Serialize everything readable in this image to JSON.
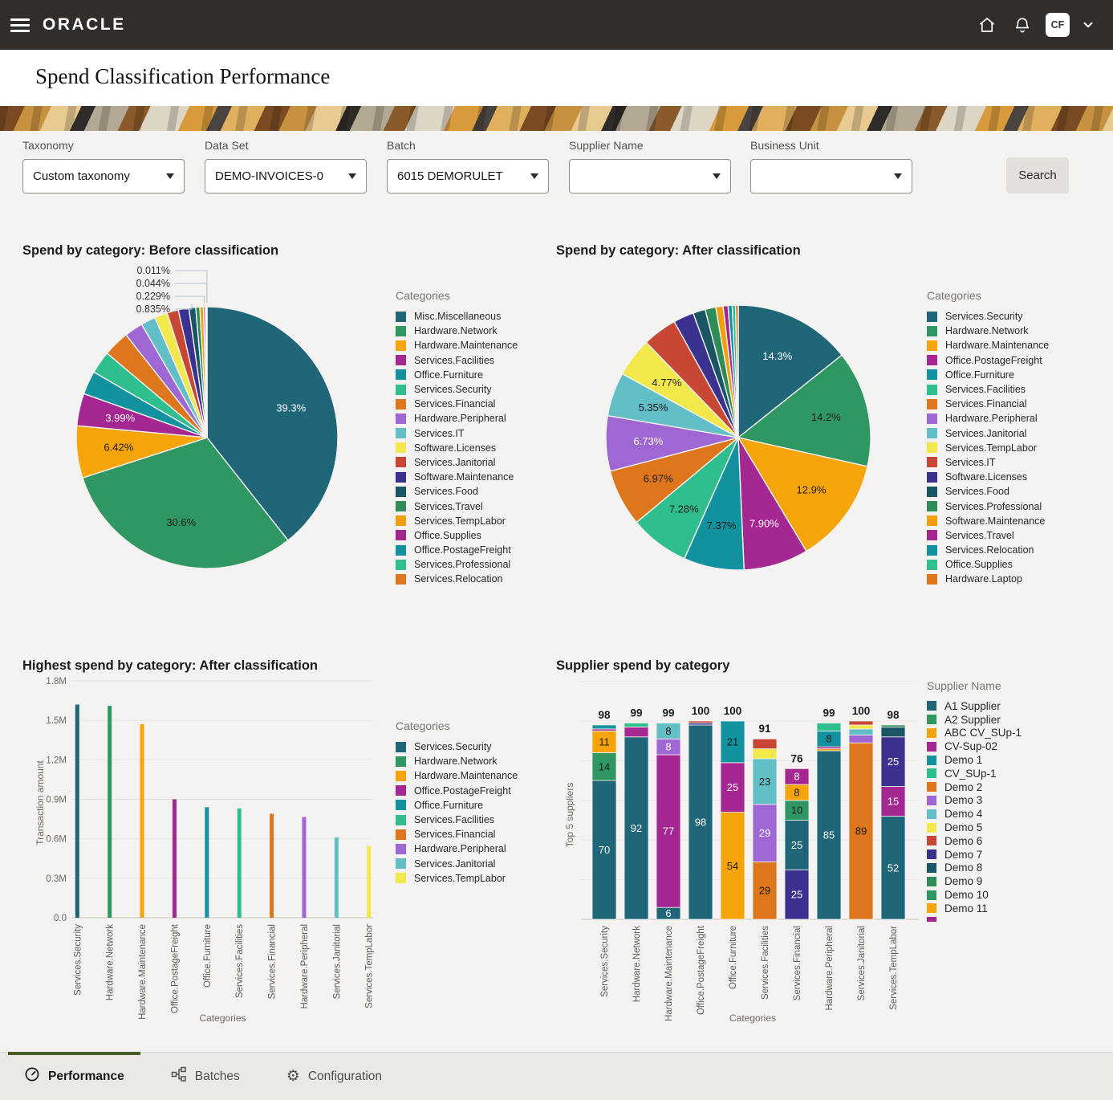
{
  "header": {
    "brand": "ORACLE",
    "avatar": "CF"
  },
  "page_title": "Spend Classification Performance",
  "filters": {
    "taxonomy": {
      "label": "Taxonomy",
      "value": "Custom taxonomy"
    },
    "data_set": {
      "label": "Data Set",
      "value": "DEMO-INVOICES-0"
    },
    "batch": {
      "label": "Batch",
      "value": "6015 DEMORULET"
    },
    "supplier_name": {
      "label": "Supplier Name",
      "value": ""
    },
    "business_unit": {
      "label": "Business Unit",
      "value": ""
    },
    "search_label": "Search"
  },
  "palette": {
    "darkteal": "#1F6678",
    "green": "#2F9862",
    "amber": "#F5A40A",
    "magenta": "#A52791",
    "teal": "#12919E",
    "springgreen": "#2FBE8D",
    "orange": "#DD761C",
    "purple": "#9F67D4",
    "lightteal": "#62BEC7",
    "yellow": "#F2E84B",
    "red": "#C74634",
    "indigo": "#3B3290",
    "darkteal2": "#1A5565",
    "green2": "#2F8C57",
    "amber2": "#EFA00B",
    "magenta2": "#A3258E"
  },
  "chart_data": [
    {
      "type": "pie",
      "title": "Spend by category: Before classification",
      "legend_title": "Categories",
      "slices": [
        {
          "label": "Misc.Miscellaneous",
          "value": 39.3,
          "color": "darkteal",
          "pct_label": "39.3%"
        },
        {
          "label": "Hardware.Network",
          "value": 30.6,
          "color": "green",
          "pct_label": "30.6%"
        },
        {
          "label": "Hardware.Maintenance",
          "value": 6.42,
          "color": "amber",
          "pct_label": "6.42%"
        },
        {
          "label": "Services.Facilities",
          "value": 3.99,
          "color": "magenta",
          "pct_label": "3.99%"
        },
        {
          "label": "Office.Furniture",
          "value": 2.9,
          "color": "teal"
        },
        {
          "label": "Services.Security",
          "value": 2.8,
          "color": "springgreen"
        },
        {
          "label": "Services.Financial",
          "value": 3.2,
          "color": "orange"
        },
        {
          "label": "Hardware.Peripheral",
          "value": 2.3,
          "color": "purple"
        },
        {
          "label": "Services.IT",
          "value": 1.8,
          "color": "lightteal"
        },
        {
          "label": "Software.Licenses",
          "value": 1.6,
          "color": "yellow"
        },
        {
          "label": "Services.Janitorial",
          "value": 1.4,
          "color": "red"
        },
        {
          "label": "Software.Maintenance",
          "value": 1.3,
          "color": "indigo"
        },
        {
          "label": "Services.Food",
          "value": 0.835,
          "color": "darkteal2",
          "callout": "0.835%"
        },
        {
          "label": "Services.Travel",
          "value": 0.5,
          "color": "green2"
        },
        {
          "label": "Services.TempLabor",
          "value": 0.45,
          "color": "amber2"
        },
        {
          "label": "Office.Supplies",
          "value": 0.229,
          "color": "magenta2",
          "callout": "0.229%"
        },
        {
          "label": "Office.PostageFreight",
          "value": 0.15,
          "color": "teal"
        },
        {
          "label": "Services.Professional",
          "value": 0.044,
          "color": "springgreen",
          "callout": "0.044%"
        },
        {
          "label": "Services.Relocation",
          "value": 0.011,
          "color": "orange",
          "callout": "0.011%"
        }
      ]
    },
    {
      "type": "pie",
      "title": "Spend by category: After classification",
      "legend_title": "Categories",
      "slices": [
        {
          "label": "Services.Security",
          "value": 14.3,
          "color": "darkteal",
          "pct_label": "14.3%"
        },
        {
          "label": "Hardware.Network",
          "value": 14.2,
          "color": "green",
          "pct_label": "14.2%"
        },
        {
          "label": "Hardware.Maintenance",
          "value": 12.9,
          "color": "amber",
          "pct_label": "12.9%"
        },
        {
          "label": "Office.PostageFreight",
          "value": 7.9,
          "color": "magenta",
          "pct_label": "7.90%"
        },
        {
          "label": "Office.Furniture",
          "value": 7.37,
          "color": "teal",
          "pct_label": "7.37%"
        },
        {
          "label": "Services.Facilities",
          "value": 7.28,
          "color": "springgreen",
          "pct_label": "7.28%"
        },
        {
          "label": "Services.Financial",
          "value": 6.97,
          "color": "orange",
          "pct_label": "6.97%"
        },
        {
          "label": "Hardware.Peripheral",
          "value": 6.73,
          "color": "purple",
          "pct_label": "6.73%"
        },
        {
          "label": "Services.Janitorial",
          "value": 5.35,
          "color": "lightteal",
          "pct_label": "5.35%"
        },
        {
          "label": "Services.TempLabor",
          "value": 4.77,
          "color": "yellow",
          "pct_label": "4.77%"
        },
        {
          "label": "Services.IT",
          "value": 4.2,
          "color": "red"
        },
        {
          "label": "Software.Licenses",
          "value": 2.5,
          "color": "indigo"
        },
        {
          "label": "Services.Food",
          "value": 1.5,
          "color": "darkteal2"
        },
        {
          "label": "Services.Professional",
          "value": 1.3,
          "color": "green2"
        },
        {
          "label": "Software.Maintenance",
          "value": 0.9,
          "color": "amber2"
        },
        {
          "label": "Services.Travel",
          "value": 0.6,
          "color": "magenta2"
        },
        {
          "label": "Services.Relocation",
          "value": 0.5,
          "color": "teal"
        },
        {
          "label": "Office.Supplies",
          "value": 0.4,
          "color": "springgreen"
        },
        {
          "label": "Hardware.Laptop",
          "value": 0.33,
          "color": "orange"
        }
      ]
    },
    {
      "type": "bar",
      "title": "Highest spend by category: After classification",
      "legend_title": "Categories",
      "ylabel": "Transaction amount",
      "xlabel": "Categories",
      "yticks": [
        "0.0",
        "0.3M",
        "0.6M",
        "0.9M",
        "1.2M",
        "1.5M",
        "1.8M"
      ],
      "ymax": 1800000,
      "categories": [
        "Services.Security",
        "Hardware.Network",
        "Hardware.Maintenance",
        "Office.PostageFreight",
        "Office.Furniture",
        "Services.Facilities",
        "Services.Financial",
        "Hardware.Peripheral",
        "Services.Janitorial",
        "Services.TempLabor"
      ],
      "values": [
        1620000,
        1610000,
        1470000,
        900000,
        840000,
        830000,
        790000,
        765000,
        610000,
        545000
      ],
      "colors": [
        "darkteal",
        "green",
        "amber",
        "magenta",
        "teal",
        "springgreen",
        "orange",
        "purple",
        "lightteal",
        "yellow"
      ]
    },
    {
      "type": "stacked_bar",
      "title": "Supplier spend by category",
      "legend_title": "Supplier Name",
      "ylabel": "Top 5 suppliers",
      "xlabel": "Categories",
      "suppliers": [
        {
          "name": "A1 Supplier",
          "color": "darkteal"
        },
        {
          "name": "A2 Supplier",
          "color": "green"
        },
        {
          "name": "ABC CV_SUp-1",
          "color": "amber"
        },
        {
          "name": "CV-Sup-02",
          "color": "magenta"
        },
        {
          "name": "Demo 1",
          "color": "teal"
        },
        {
          "name": "CV_SUp-1",
          "color": "springgreen"
        },
        {
          "name": "Demo 2",
          "color": "orange"
        },
        {
          "name": "Demo 3",
          "color": "purple"
        },
        {
          "name": "Demo 4",
          "color": "lightteal"
        },
        {
          "name": "Demo 5",
          "color": "yellow"
        },
        {
          "name": "Demo 6",
          "color": "red"
        },
        {
          "name": "Demo 7",
          "color": "indigo"
        },
        {
          "name": "Demo 8",
          "color": "darkteal2"
        },
        {
          "name": "Demo 9",
          "color": "green2"
        },
        {
          "name": "Demo 10",
          "color": "green"
        },
        {
          "name": "Demo 11",
          "color": "amber"
        },
        {
          "name": "",
          "color": "magenta2"
        }
      ],
      "categories": [
        "Services.Security",
        "Hardware.Network",
        "Hardware.Maintenance",
        "Office.PostageFreight",
        "Office.Furniture",
        "Services.Facilities",
        "Services.Financial",
        "Hardware.Peripheral",
        "Services.Janitorial",
        "Services.TempLabor"
      ],
      "bars": [
        {
          "total": 98,
          "segments": [
            {
              "supplier": "A1 Supplier",
              "value": 70
            },
            {
              "supplier": "A2 Supplier",
              "value": 14
            },
            {
              "supplier": "ABC CV_SUp-1",
              "value": 11
            },
            {
              "supplier": "CV-Sup-02",
              "value": 1
            },
            {
              "supplier": "Demo 1",
              "value": 2
            }
          ]
        },
        {
          "total": 99,
          "segments": [
            {
              "supplier": "A1 Supplier",
              "value": 92
            },
            {
              "supplier": "CV-Sup-02",
              "value": 5
            },
            {
              "supplier": "CV_SUp-1",
              "value": 2
            }
          ]
        },
        {
          "total": 99,
          "segments": [
            {
              "supplier": "A1 Supplier",
              "value": 6
            },
            {
              "supplier": "CV-Sup-02",
              "value": 77
            },
            {
              "supplier": "Demo 3",
              "value": 8
            },
            {
              "supplier": "Demo 4",
              "value": 8
            }
          ]
        },
        {
          "total": 100,
          "segments": [
            {
              "supplier": "A1 Supplier",
              "value": 98
            },
            {
              "supplier": "Demo 7",
              "value": 1
            },
            {
              "supplier": "Demo 6",
              "value": 1
            }
          ]
        },
        {
          "total": 100,
          "segments": [
            {
              "supplier": "ABC CV_SUp-1",
              "value": 54
            },
            {
              "supplier": "CV-Sup-02",
              "value": 25
            },
            {
              "supplier": "Demo 1",
              "value": 21
            }
          ]
        },
        {
          "total": 91,
          "segments": [
            {
              "supplier": "Demo 2",
              "value": 29
            },
            {
              "supplier": "Demo 3",
              "value": 29
            },
            {
              "supplier": "Demo 4",
              "value": 23
            },
            {
              "supplier": "Demo 5",
              "value": 5
            },
            {
              "supplier": "Demo 6",
              "value": 5
            }
          ]
        },
        {
          "total": 76,
          "segments": [
            {
              "supplier": "Demo 7",
              "value": 25
            },
            {
              "supplier": "A1 Supplier",
              "value": 25
            },
            {
              "supplier": "A2 Supplier",
              "value": 10
            },
            {
              "supplier": "ABC CV_SUp-1",
              "value": 8
            },
            {
              "supplier": "CV-Sup-02",
              "value": 8
            }
          ]
        },
        {
          "total": 99,
          "segments": [
            {
              "supplier": "A1 Supplier",
              "value": 85
            },
            {
              "supplier": "ABC CV_SUp-1",
              "value": 1
            },
            {
              "supplier": "CV-Sup-02",
              "value": 1
            },
            {
              "supplier": "Demo 1",
              "value": 8
            },
            {
              "supplier": "CV_SUp-1",
              "value": 4
            }
          ]
        },
        {
          "total": 100,
          "segments": [
            {
              "supplier": "Demo 2",
              "value": 89
            },
            {
              "supplier": "Demo 3",
              "value": 4
            },
            {
              "supplier": "Demo 4",
              "value": 3
            },
            {
              "supplier": "Demo 5",
              "value": 2
            },
            {
              "supplier": "Demo 6",
              "value": 2
            }
          ]
        },
        {
          "total": 98,
          "segments": [
            {
              "supplier": "A1 Supplier",
              "value": 52
            },
            {
              "supplier": "CV-Sup-02",
              "value": 15
            },
            {
              "supplier": "Demo 7",
              "value": 25
            },
            {
              "supplier": "Demo 8",
              "value": 5
            },
            {
              "supplier": "Demo 9",
              "value": 1
            }
          ]
        }
      ]
    }
  ],
  "tabs": [
    {
      "label": "Performance",
      "icon": "gauge-icon",
      "active": true
    },
    {
      "label": "Batches",
      "icon": "batches-icon",
      "active": false
    },
    {
      "label": "Configuration",
      "icon": "gear-icon",
      "active": false
    }
  ]
}
